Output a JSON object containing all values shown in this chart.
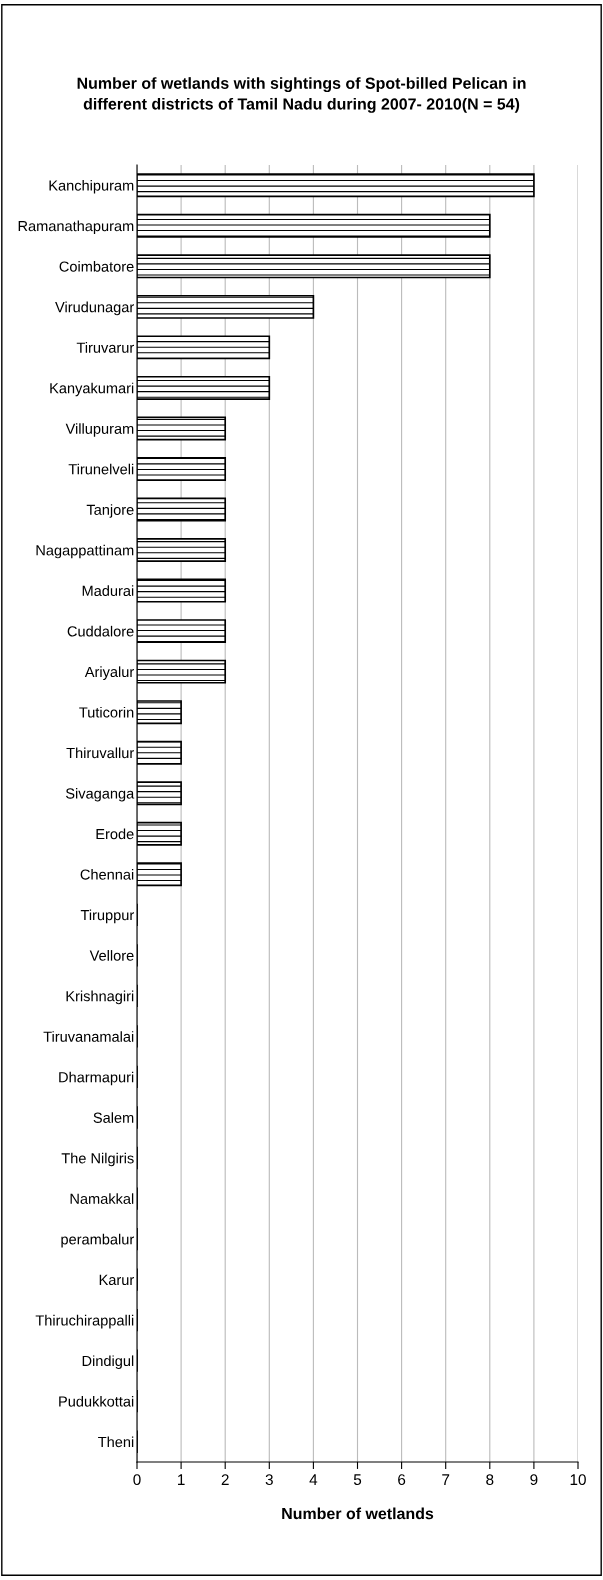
{
  "chart_data": {
    "type": "bar",
    "orientation": "horizontal",
    "title": "Number of wetlands with sightings of Spot-billed Pelican in\ndifferent districts of Tamil Nadu during 2007- 2010(N = 54)",
    "xlabel": "Number of wetlands",
    "categories": [
      "Kanchipuram",
      "Ramanathapuram",
      "Coimbatore",
      "Virudunagar",
      "Tiruvarur",
      "Kanyakumari",
      "Villupuram",
      "Tirunelveli",
      "Tanjore",
      "Nagappattinam",
      "Madurai",
      "Cuddalore",
      "Ariyalur",
      "Tuticorin",
      "Thiruvallur",
      "Sivaganga",
      "Erode",
      "Chennai",
      "Tiruppur",
      "Vellore",
      "Krishnagiri",
      "Tiruvanamalai",
      "Dharmapuri",
      "Salem",
      "The Nilgiris",
      "Namakkal",
      "perambalur",
      "Karur",
      "Thiruchirappalli",
      "Dindigul",
      "Pudukkottai",
      "Theni"
    ],
    "values": [
      9,
      8,
      8,
      4,
      3,
      3,
      2,
      2,
      2,
      2,
      2,
      2,
      2,
      1,
      1,
      1,
      1,
      1,
      0,
      0,
      0,
      0,
      0,
      0,
      0,
      0,
      0,
      0,
      0,
      0,
      0,
      0
    ],
    "color": "#000000",
    "xlim": [
      0,
      10
    ],
    "xticks": [
      0,
      1,
      2,
      3,
      4,
      5,
      6,
      7,
      8,
      9,
      10
    ],
    "grid": "x",
    "legend": false
  }
}
